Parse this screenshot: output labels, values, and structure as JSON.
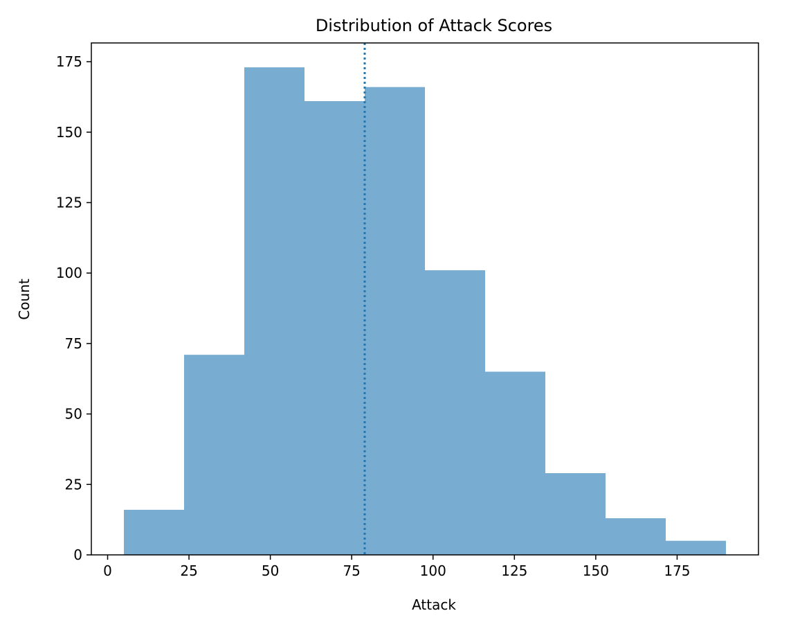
{
  "chart_data": {
    "type": "bar",
    "title": "Distribution of Attack Scores",
    "xlabel": "Attack",
    "ylabel": "Count",
    "bins": [
      {
        "start": 5.0,
        "end": 23.5,
        "count": 16
      },
      {
        "start": 23.5,
        "end": 42.0,
        "count": 71
      },
      {
        "start": 42.0,
        "end": 60.5,
        "count": 173
      },
      {
        "start": 60.5,
        "end": 79.0,
        "count": 161
      },
      {
        "start": 79.0,
        "end": 97.5,
        "count": 166
      },
      {
        "start": 97.5,
        "end": 116.0,
        "count": 101
      },
      {
        "start": 116.0,
        "end": 134.5,
        "count": 65
      },
      {
        "start": 134.5,
        "end": 153.0,
        "count": 29
      },
      {
        "start": 153.0,
        "end": 171.5,
        "count": 13
      },
      {
        "start": 171.5,
        "end": 190.0,
        "count": 5
      }
    ],
    "mean_line": {
      "x": 79.0,
      "style": "dotted"
    },
    "xlim": [
      -5.0,
      200.0
    ],
    "ylim": [
      0,
      181.65
    ],
    "xticks": [
      0,
      25,
      50,
      75,
      100,
      125,
      150,
      175
    ],
    "yticks": [
      0,
      25,
      50,
      75,
      100,
      125,
      150,
      175
    ],
    "grid": false,
    "colors": {
      "bar": "#78acd0",
      "mean_line": "#1f77b4",
      "axis": "#000000"
    }
  }
}
